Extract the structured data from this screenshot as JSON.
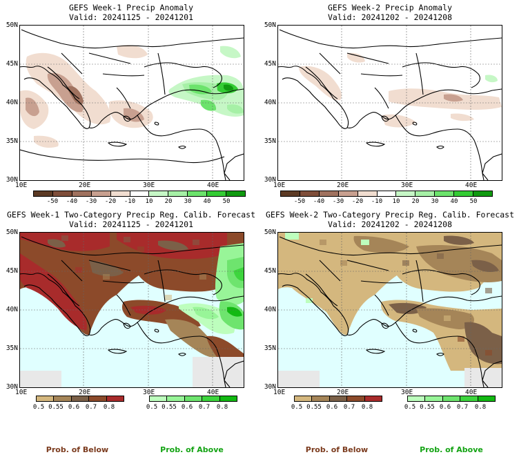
{
  "colors": {
    "ocean": "#e0ffff",
    "dry": [
      "#5c3a24",
      "#7f4e3a",
      "#a0725f",
      "#c8a090",
      "#f1ddd0"
    ],
    "wet": [
      "#c6f7c6",
      "#a6f0a6",
      "#6ce36c",
      "#34cc34",
      "#109a10"
    ],
    "below": [
      "#d4b77e",
      "#a58558",
      "#7b6048",
      "#8c4a2a",
      "#a82b2b"
    ],
    "above": [
      "#bdfebd",
      "#98f598",
      "#6ee46e",
      "#3dd53d",
      "#12b912"
    ],
    "below_text": "#7b3b1e",
    "above_text": "#13a313"
  },
  "panels": {
    "p1": {
      "title": "GEFS Week-1 Precip Anomaly",
      "valid": "Valid: 20241125 - 20241201",
      "colorbar_labels": [
        "-50",
        "-40",
        "-30",
        "-20",
        "-10",
        "10",
        "20",
        "30",
        "40",
        "50"
      ]
    },
    "p2": {
      "title": "GEFS Week-2 Precip Anomaly",
      "valid": "Valid: 20241202 - 20241208",
      "colorbar_labels": [
        "-50",
        "-40",
        "-30",
        "-20",
        "-10",
        "10",
        "20",
        "30",
        "40",
        "50"
      ]
    },
    "p3": {
      "title": "GEFS Week-1 Two-Category Precip Reg. Calib. Forecast",
      "valid": "Valid: 20241125 - 20241201",
      "below_labels": [
        "0.5",
        "0.55",
        "0.6",
        "0.7",
        "0.8"
      ],
      "above_labels": [
        "0.5",
        "0.55",
        "0.6",
        "0.7",
        "0.8"
      ]
    },
    "p4": {
      "title": "GEFS Week-2 Two-Category Precip Reg. Calib. Forecast",
      "valid": "Valid: 20241202 - 20241208",
      "below_labels": [
        "0.5",
        "0.55",
        "0.6",
        "0.7",
        "0.8"
      ],
      "above_labels": [
        "0.5",
        "0.55",
        "0.6",
        "0.7",
        "0.8"
      ]
    }
  },
  "axes": {
    "lat_labels": [
      "50N",
      "45N",
      "40N",
      "35N",
      "30N"
    ],
    "lon_labels": [
      "10E",
      "20E",
      "30E",
      "40E"
    ]
  },
  "legend": {
    "below_title": "Prob. of Below",
    "above_title": "Prob. of Above"
  }
}
